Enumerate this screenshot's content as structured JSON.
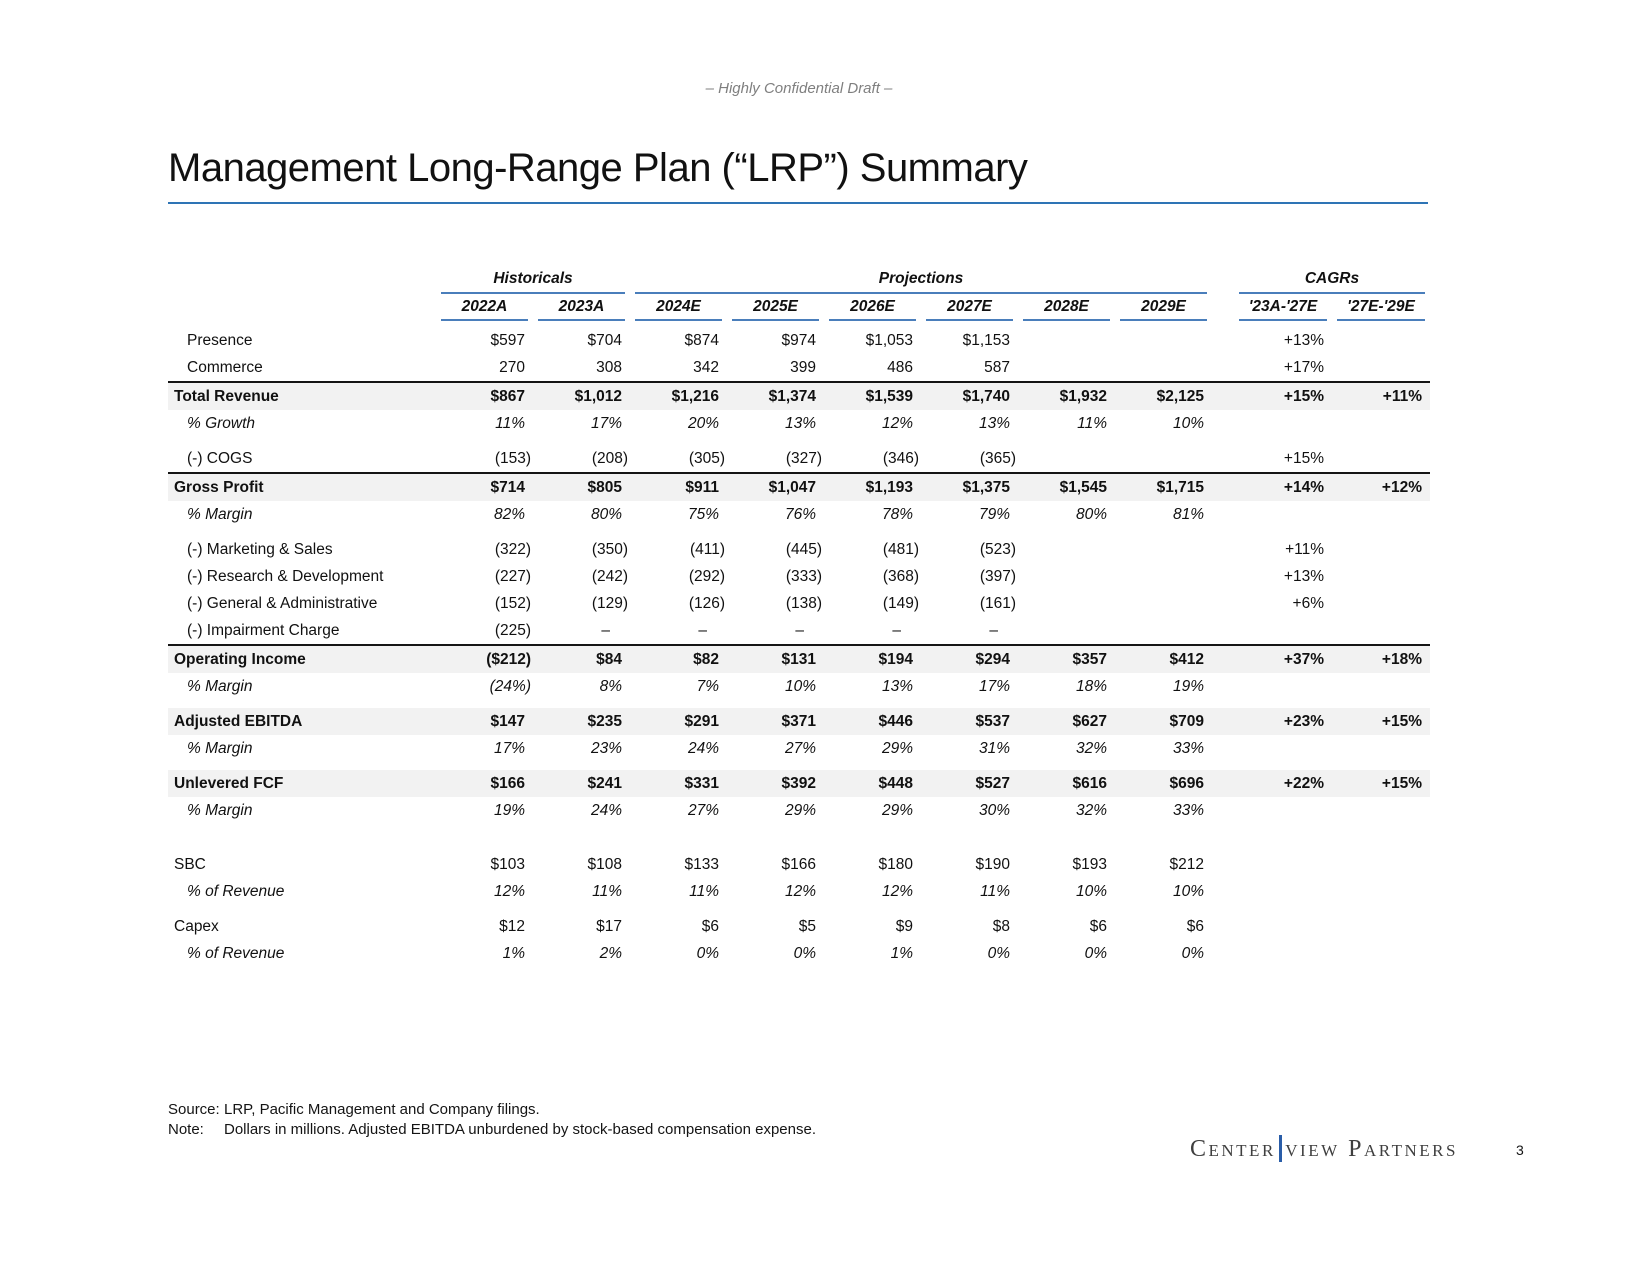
{
  "colors": {
    "accent_blue": "#4a7ebb",
    "title_underline": "#2e74b5",
    "row_shade": "#f2f2f2",
    "logo_bar": "#2a5da8"
  },
  "header": {
    "confidential": "– Highly Confidential Draft –",
    "title": "Management Long-Range Plan (“LRP”) Summary"
  },
  "table": {
    "groups": [
      {
        "label": "Historicals",
        "span": 2
      },
      {
        "label": "Projections",
        "span": 6
      },
      {
        "label": "CAGRs",
        "span": 2
      }
    ],
    "columns": [
      "2022A",
      "2023A",
      "2024E",
      "2025E",
      "2026E",
      "2027E",
      "2028E",
      "2029E",
      "'23A-'27E",
      "'27E-'29E"
    ],
    "rows": [
      {
        "label": "Presence",
        "style": "plain",
        "indent": true,
        "values": [
          "$597",
          "$704",
          "$874",
          "$974",
          "$1,053",
          "$1,153",
          "",
          "",
          "+13%",
          ""
        ]
      },
      {
        "label": "Commerce",
        "style": "plain",
        "indent": true,
        "values": [
          "270",
          "308",
          "342",
          "399",
          "486",
          "587",
          "",
          "",
          "+17%",
          ""
        ]
      },
      {
        "label": "Total Revenue",
        "style": "total",
        "indent": false,
        "values": [
          "$867",
          "$1,012",
          "$1,216",
          "$1,374",
          "$1,539",
          "$1,740",
          "$1,932",
          "$2,125",
          "+15%",
          "+11%"
        ]
      },
      {
        "label": "% Growth",
        "style": "pct",
        "indent": true,
        "values": [
          "11%",
          "17%",
          "20%",
          "13%",
          "12%",
          "13%",
          "11%",
          "10%",
          "",
          ""
        ]
      },
      {
        "label": "(-) COGS",
        "style": "plain",
        "indent": true,
        "gap": "sm",
        "values": [
          "(153)",
          "(208)",
          "(305)",
          "(327)",
          "(346)",
          "(365)",
          "",
          "",
          "+15%",
          ""
        ]
      },
      {
        "label": "Gross Profit",
        "style": "total",
        "indent": false,
        "values": [
          "$714",
          "$805",
          "$911",
          "$1,047",
          "$1,193",
          "$1,375",
          "$1,545",
          "$1,715",
          "+14%",
          "+12%"
        ]
      },
      {
        "label": "% Margin",
        "style": "pct",
        "indent": true,
        "values": [
          "82%",
          "80%",
          "75%",
          "76%",
          "78%",
          "79%",
          "80%",
          "81%",
          "",
          ""
        ]
      },
      {
        "label": "(-) Marketing & Sales",
        "style": "plain",
        "indent": true,
        "gap": "sm",
        "values": [
          "(322)",
          "(350)",
          "(411)",
          "(445)",
          "(481)",
          "(523)",
          "",
          "",
          "+11%",
          ""
        ]
      },
      {
        "label": "(-) Research & Development",
        "style": "plain",
        "indent": true,
        "values": [
          "(227)",
          "(242)",
          "(292)",
          "(333)",
          "(368)",
          "(397)",
          "",
          "",
          "+13%",
          ""
        ]
      },
      {
        "label": "(-) General & Administrative",
        "style": "plain",
        "indent": true,
        "values": [
          "(152)",
          "(129)",
          "(126)",
          "(138)",
          "(149)",
          "(161)",
          "",
          "",
          "+6%",
          ""
        ]
      },
      {
        "label": "(-) Impairment Charge",
        "style": "plain",
        "indent": true,
        "values": [
          "(225)",
          "–",
          "–",
          "–",
          "–",
          "–",
          "",
          "",
          "",
          ""
        ]
      },
      {
        "label": "Operating Income",
        "style": "total",
        "indent": false,
        "values": [
          "($212)",
          "$84",
          "$82",
          "$131",
          "$194",
          "$294",
          "$357",
          "$412",
          "+37%",
          "+18%"
        ]
      },
      {
        "label": "% Margin",
        "style": "pct",
        "indent": true,
        "values": [
          "(24%)",
          "8%",
          "7%",
          "10%",
          "13%",
          "17%",
          "18%",
          "19%",
          "",
          ""
        ]
      },
      {
        "label": "Adjusted EBITDA",
        "style": "subtotal",
        "indent": false,
        "gap": "sm",
        "values": [
          "$147",
          "$235",
          "$291",
          "$371",
          "$446",
          "$537",
          "$627",
          "$709",
          "+23%",
          "+15%"
        ]
      },
      {
        "label": "% Margin",
        "style": "pct",
        "indent": true,
        "values": [
          "17%",
          "23%",
          "24%",
          "27%",
          "29%",
          "31%",
          "32%",
          "33%",
          "",
          ""
        ]
      },
      {
        "label": "Unlevered FCF",
        "style": "subtotal",
        "indent": false,
        "gap": "sm",
        "values": [
          "$166",
          "$241",
          "$331",
          "$392",
          "$448",
          "$527",
          "$616",
          "$696",
          "+22%",
          "+15%"
        ]
      },
      {
        "label": "% Margin",
        "style": "pct",
        "indent": true,
        "values": [
          "19%",
          "24%",
          "27%",
          "29%",
          "29%",
          "30%",
          "32%",
          "33%",
          "",
          ""
        ]
      },
      {
        "label": "SBC",
        "style": "plain",
        "indent": false,
        "gap": "lg",
        "values": [
          "$103",
          "$108",
          "$133",
          "$166",
          "$180",
          "$190",
          "$193",
          "$212",
          "",
          ""
        ]
      },
      {
        "label": "% of Revenue",
        "style": "pct",
        "indent": true,
        "values": [
          "12%",
          "11%",
          "11%",
          "12%",
          "12%",
          "11%",
          "10%",
          "10%",
          "",
          ""
        ]
      },
      {
        "label": "Capex",
        "style": "plain",
        "indent": false,
        "gap": "sm",
        "values": [
          "$12",
          "$17",
          "$6",
          "$5",
          "$9",
          "$8",
          "$6",
          "$6",
          "",
          ""
        ]
      },
      {
        "label": "% of Revenue",
        "style": "pct",
        "indent": true,
        "values": [
          "1%",
          "2%",
          "0%",
          "0%",
          "1%",
          "0%",
          "0%",
          "0%",
          "",
          ""
        ]
      }
    ]
  },
  "footer": {
    "source_label": "Source:",
    "source_text": "LRP, Pacific Management and Company filings.",
    "note_label": "Note:",
    "note_text": "Dollars in millions. Adjusted EBITDA unburdened by stock-based compensation expense.",
    "logo_left": "Center",
    "logo_right": "view Partners",
    "page_number": "3"
  }
}
